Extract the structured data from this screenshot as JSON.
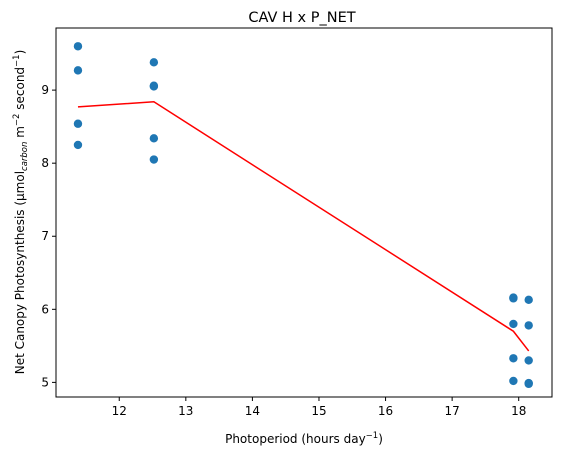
{
  "chart_data": {
    "type": "scatter",
    "title": "CAV H x P_NET",
    "xlabel": {
      "main": "Photoperiod (hours day",
      "sup": "−1",
      "tail": ")"
    },
    "ylabel": {
      "p1": "Net Canopy Photosynthesis (μmol",
      "sub": "carbon",
      "p2": " m",
      "sup1": "−2",
      "p3": " second",
      "sup2": "−1",
      "p4": ")"
    },
    "xlim": [
      11.05,
      18.5
    ],
    "ylim": [
      4.8,
      9.85
    ],
    "xticks": [
      12,
      13,
      14,
      15,
      16,
      17,
      18
    ],
    "yticks": [
      5,
      6,
      7,
      8,
      9
    ],
    "grid": false,
    "colors": {
      "points": "#1f77b4",
      "line": "#ff0000",
      "axes": "#000000"
    },
    "series": [
      {
        "type": "scatter",
        "x": [
          11.38,
          11.38,
          11.38,
          11.38,
          12.52,
          12.52,
          12.52,
          12.52,
          12.52,
          17.92,
          17.92,
          17.92,
          17.92,
          17.92,
          18.15,
          18.15,
          18.15,
          18.15,
          18.15
        ],
        "y": [
          9.6,
          9.27,
          8.54,
          8.25,
          9.38,
          9.06,
          9.05,
          8.34,
          8.05,
          6.16,
          6.15,
          5.8,
          5.33,
          5.02,
          6.13,
          5.78,
          5.3,
          4.99,
          4.98
        ]
      },
      {
        "type": "line",
        "x": [
          11.38,
          12.52,
          17.92,
          18.15
        ],
        "y": [
          8.77,
          8.84,
          5.7,
          5.43
        ]
      }
    ]
  }
}
